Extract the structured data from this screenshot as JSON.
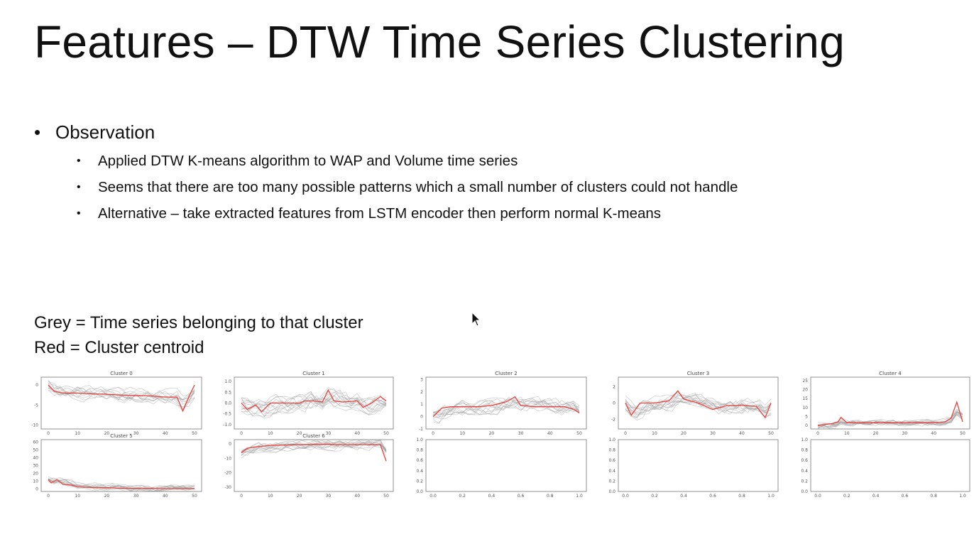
{
  "title": "Features – DTW Time Series Clustering",
  "bullet": "Observation",
  "sub_bullets": [
    "Applied DTW K-means algorithm to WAP and Volume time series",
    "Seems that there are too many possible patterns which a small number of clusters could not handle",
    "Alternative – take extracted features from LSTM encoder then perform normal K-means"
  ],
  "legend": {
    "grey": "Grey = Time series belonging to that cluster",
    "red": "Red = Cluster centroid"
  },
  "colors": {
    "series": "#9a9a9a",
    "centroid": "#e8403a",
    "axis": "#555555"
  },
  "chart_data": [
    {
      "type": "line",
      "title": "Cluster 0",
      "xlim": [
        0,
        50
      ],
      "ylim": [
        -11,
        2
      ],
      "xticks": [
        "0",
        "10",
        "20",
        "30",
        "40",
        "50"
      ],
      "yticks": [
        {
          "v": 0,
          "t": "0"
        },
        {
          "v": -5,
          "t": "-5"
        },
        {
          "v": -10,
          "t": "-10"
        }
      ],
      "centroid": {
        "x": [
          0,
          2,
          5,
          10,
          15,
          20,
          25,
          30,
          35,
          40,
          44,
          46,
          48,
          50
        ],
        "y": [
          0,
          -1.5,
          -2,
          -2,
          -2.2,
          -2.3,
          -2.5,
          -2.6,
          -2.7,
          -3,
          -3,
          -6.5,
          -3,
          0
        ]
      },
      "series_count": 12,
      "series_amplitude": 3
    },
    {
      "type": "line",
      "title": "Cluster 1",
      "xlim": [
        0,
        50
      ],
      "ylim": [
        -1.2,
        1.2
      ],
      "xticks": [
        "0",
        "10",
        "20",
        "30",
        "40",
        "50"
      ],
      "yticks": [
        {
          "v": 1,
          "t": "1.0"
        },
        {
          "v": 0.5,
          "t": "0.5"
        },
        {
          "v": 0,
          "t": "0.0"
        },
        {
          "v": -0.5,
          "t": "-0.5"
        },
        {
          "v": -1,
          "t": "-1.0"
        }
      ],
      "centroid": {
        "x": [
          0,
          2,
          5,
          7,
          10,
          15,
          20,
          22,
          25,
          28,
          30,
          32,
          35,
          40,
          42,
          45,
          48,
          50
        ],
        "y": [
          0,
          -0.3,
          -0.1,
          -0.4,
          0,
          0,
          0,
          0.1,
          0.1,
          0.05,
          0.6,
          0.1,
          0.05,
          0.1,
          -0.2,
          0,
          0.3,
          0.1
        ]
      },
      "series_count": 14,
      "series_amplitude": 0.7
    },
    {
      "type": "line",
      "title": "Cluster 2",
      "xlim": [
        0,
        50
      ],
      "ylim": [
        -1,
        3.2
      ],
      "xticks": [
        "0",
        "10",
        "20",
        "30",
        "40",
        "50"
      ],
      "yticks": [
        {
          "v": 3,
          "t": "3"
        },
        {
          "v": 2,
          "t": "2"
        },
        {
          "v": 1,
          "t": "1"
        },
        {
          "v": 0,
          "t": "0"
        },
        {
          "v": -1,
          "t": "-1"
        }
      ],
      "centroid": {
        "x": [
          0,
          3,
          6,
          10,
          15,
          20,
          25,
          28,
          30,
          35,
          40,
          45,
          48,
          50
        ],
        "y": [
          0,
          0.7,
          0.8,
          0.8,
          0.8,
          0.9,
          1.2,
          1.6,
          0.9,
          0.8,
          0.8,
          0.8,
          0.6,
          0.3
        ]
      },
      "series_count": 13,
      "series_amplitude": 1.0
    },
    {
      "type": "line",
      "title": "Cluster 3",
      "xlim": [
        0,
        50
      ],
      "ylim": [
        -3.2,
        3.2
      ],
      "xticks": [
        "0",
        "10",
        "20",
        "30",
        "40",
        "50"
      ],
      "yticks": [
        {
          "v": 2,
          "t": "2"
        },
        {
          "v": 0,
          "t": "0"
        },
        {
          "v": -2,
          "t": "-2"
        }
      ],
      "centroid": {
        "x": [
          0,
          2,
          5,
          10,
          15,
          18,
          20,
          25,
          30,
          35,
          40,
          45,
          48,
          50
        ],
        "y": [
          0,
          -1.5,
          0,
          0,
          0.3,
          1.5,
          0.5,
          0,
          -0.8,
          -0.3,
          -0.3,
          -0.4,
          -1.8,
          0
        ]
      },
      "series_count": 14,
      "series_amplitude": 1.5
    },
    {
      "type": "line",
      "title": "Cluster 4",
      "xlim": [
        0,
        50
      ],
      "ylim": [
        -2,
        27
      ],
      "xticks": [
        "0",
        "10",
        "20",
        "30",
        "40",
        "50"
      ],
      "yticks": [
        {
          "v": 25,
          "t": "25"
        },
        {
          "v": 20,
          "t": "20"
        },
        {
          "v": 15,
          "t": "15"
        },
        {
          "v": 10,
          "t": "10"
        },
        {
          "v": 5,
          "t": "5"
        },
        {
          "v": 0,
          "t": "0"
        }
      ],
      "centroid": {
        "x": [
          0,
          5,
          7,
          8,
          10,
          20,
          30,
          40,
          44,
          46,
          48,
          50
        ],
        "y": [
          0,
          1,
          2,
          4.5,
          1.5,
          1.5,
          1.5,
          1.5,
          2,
          4,
          13,
          2
        ]
      },
      "series_count": 14,
      "series_amplitude": 3
    },
    {
      "type": "line",
      "title": "Cluster 5",
      "xlim": [
        0,
        50
      ],
      "ylim": [
        -3,
        63
      ],
      "xticks": [
        "0",
        "10",
        "20",
        "30",
        "40",
        "50"
      ],
      "yticks": [
        {
          "v": 60,
          "t": "60"
        },
        {
          "v": 50,
          "t": "50"
        },
        {
          "v": 40,
          "t": "40"
        },
        {
          "v": 30,
          "t": "30"
        },
        {
          "v": 20,
          "t": "20"
        },
        {
          "v": 10,
          "t": "10"
        },
        {
          "v": 0,
          "t": "0"
        }
      ],
      "centroid": {
        "x": [
          0,
          1,
          3,
          5,
          8,
          10,
          15,
          20,
          25,
          30,
          35,
          40,
          50
        ],
        "y": [
          12,
          8,
          12,
          6,
          5,
          3,
          2,
          2,
          1,
          1,
          1,
          0.5,
          0.5
        ]
      },
      "series_count": 12,
      "series_amplitude": 8
    },
    {
      "type": "line",
      "title": "Cluster 6",
      "xlim": [
        0,
        50
      ],
      "ylim": [
        -33,
        3
      ],
      "xticks": [
        "0",
        "10",
        "20",
        "30",
        "40",
        "50"
      ],
      "yticks": [
        {
          "v": 0,
          "t": "0"
        },
        {
          "v": -10,
          "t": "-10"
        },
        {
          "v": -20,
          "t": "-20"
        },
        {
          "v": -30,
          "t": "-30"
        }
      ],
      "centroid": {
        "x": [
          0,
          2,
          5,
          10,
          15,
          20,
          25,
          30,
          35,
          40,
          45,
          48,
          50
        ],
        "y": [
          -6,
          -3,
          -2,
          -1,
          -0.8,
          -0.5,
          -0.3,
          -0.3,
          -0.5,
          -0.5,
          -0.5,
          -0.5,
          -12
        ]
      },
      "series_count": 13,
      "series_amplitude": 6
    },
    {
      "type": "line",
      "title": "",
      "xlim": [
        0,
        1
      ],
      "ylim": [
        0,
        1
      ],
      "xticks": [
        "0.0",
        "0.2",
        "0.4",
        "0.6",
        "0.8",
        "1.0"
      ],
      "yticks": [
        {
          "v": 1,
          "t": "1.0"
        },
        {
          "v": 0.8,
          "t": "0.8"
        },
        {
          "v": 0.6,
          "t": "0.6"
        },
        {
          "v": 0.4,
          "t": "0.4"
        },
        {
          "v": 0.2,
          "t": "0.2"
        },
        {
          "v": 0,
          "t": "0.0"
        }
      ]
    },
    {
      "type": "line",
      "title": "",
      "xlim": [
        0,
        1
      ],
      "ylim": [
        0,
        1
      ],
      "xticks": [
        "0.0",
        "0.2",
        "0.4",
        "0.6",
        "0.8",
        "1.0"
      ],
      "yticks": [
        {
          "v": 1,
          "t": "1.0"
        },
        {
          "v": 0.8,
          "t": "0.8"
        },
        {
          "v": 0.6,
          "t": "0.6"
        },
        {
          "v": 0.4,
          "t": "0.4"
        },
        {
          "v": 0.2,
          "t": "0.2"
        },
        {
          "v": 0,
          "t": "0.0"
        }
      ]
    },
    {
      "type": "line",
      "title": "",
      "xlim": [
        0,
        1
      ],
      "ylim": [
        0,
        1
      ],
      "xticks": [
        "0.0",
        "0.2",
        "0.4",
        "0.6",
        "0.8",
        "1.0"
      ],
      "yticks": [
        {
          "v": 1,
          "t": "1.0"
        },
        {
          "v": 0.8,
          "t": "0.8"
        },
        {
          "v": 0.6,
          "t": "0.6"
        },
        {
          "v": 0.4,
          "t": "0.4"
        },
        {
          "v": 0.2,
          "t": "0.2"
        },
        {
          "v": 0,
          "t": "0.0"
        }
      ]
    }
  ]
}
